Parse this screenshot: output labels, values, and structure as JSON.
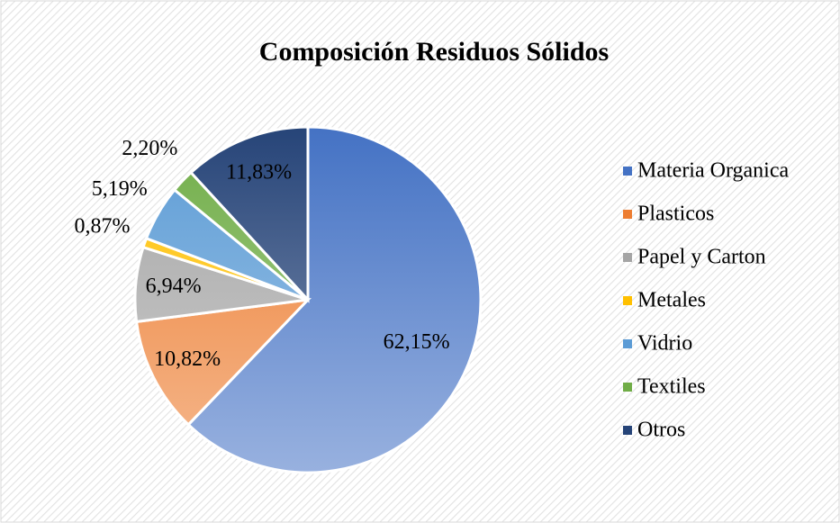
{
  "chart_data": {
    "type": "pie",
    "title": "Composición Residuos Sólidos",
    "categories": [
      "Materia Organica",
      "Plasticos",
      "Papel y Carton",
      "Metales",
      "Vidrio",
      "Textiles",
      "Otros"
    ],
    "values": [
      62.15,
      10.82,
      6.94,
      0.87,
      5.19,
      2.2,
      11.83
    ],
    "value_labels": [
      "62,15%",
      "10,82%",
      "6,94%",
      "0,87%",
      "5,19%",
      "2,20%",
      "11,83%"
    ],
    "colors": [
      "#4472c4",
      "#ed7d31",
      "#a5a5a5",
      "#ffc000",
      "#5b9bd5",
      "#70ad47",
      "#264478"
    ],
    "legend": "right"
  }
}
